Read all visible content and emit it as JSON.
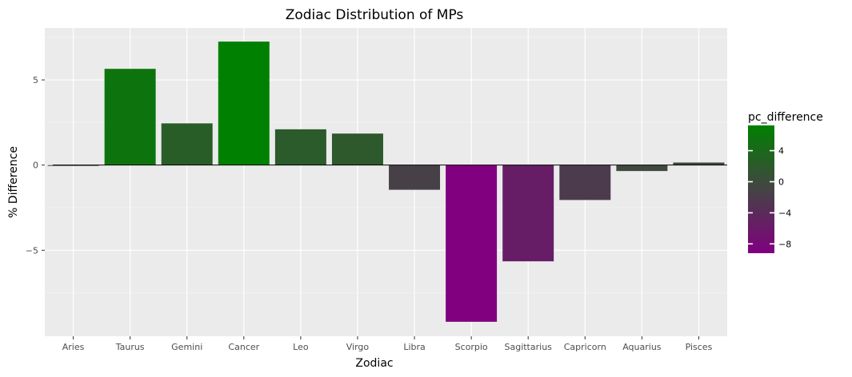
{
  "chart_data": {
    "type": "bar",
    "title": "Zodiac Distribution of MPs",
    "xlabel": "Zodiac",
    "ylabel": "% Difference",
    "categories": [
      "Aries",
      "Taurus",
      "Gemini",
      "Cancer",
      "Leo",
      "Virgo",
      "Libra",
      "Scorpio",
      "Sagittarius",
      "Capricorn",
      "Aquarius",
      "Pisces"
    ],
    "values": [
      -0.05,
      5.65,
      2.45,
      7.25,
      2.1,
      1.85,
      -1.45,
      -9.2,
      -5.65,
      -2.05,
      -0.35,
      0.15
    ],
    "ylim": [
      -10.05,
      8.05
    ],
    "yticks": [
      -5,
      0,
      5
    ],
    "ytick_labels": [
      "−5",
      "0",
      "5"
    ],
    "grid": true,
    "reference_line": 0,
    "legend": {
      "title": "pc_difference",
      "placement": "right",
      "range": [
        -9.2,
        7.25
      ],
      "ticks": [
        4,
        0,
        -4,
        -8
      ],
      "tick_labels": [
        "4",
        "0",
        "−4",
        "−8"
      ],
      "colors": {
        "low": "#800080",
        "mid": "#444444",
        "high": "#008000"
      }
    },
    "colors": {
      "panel": "#ebebeb",
      "grid_major": "#ffffff",
      "grid_minor": "#f5f5f5",
      "zero_line": "#000000"
    }
  }
}
